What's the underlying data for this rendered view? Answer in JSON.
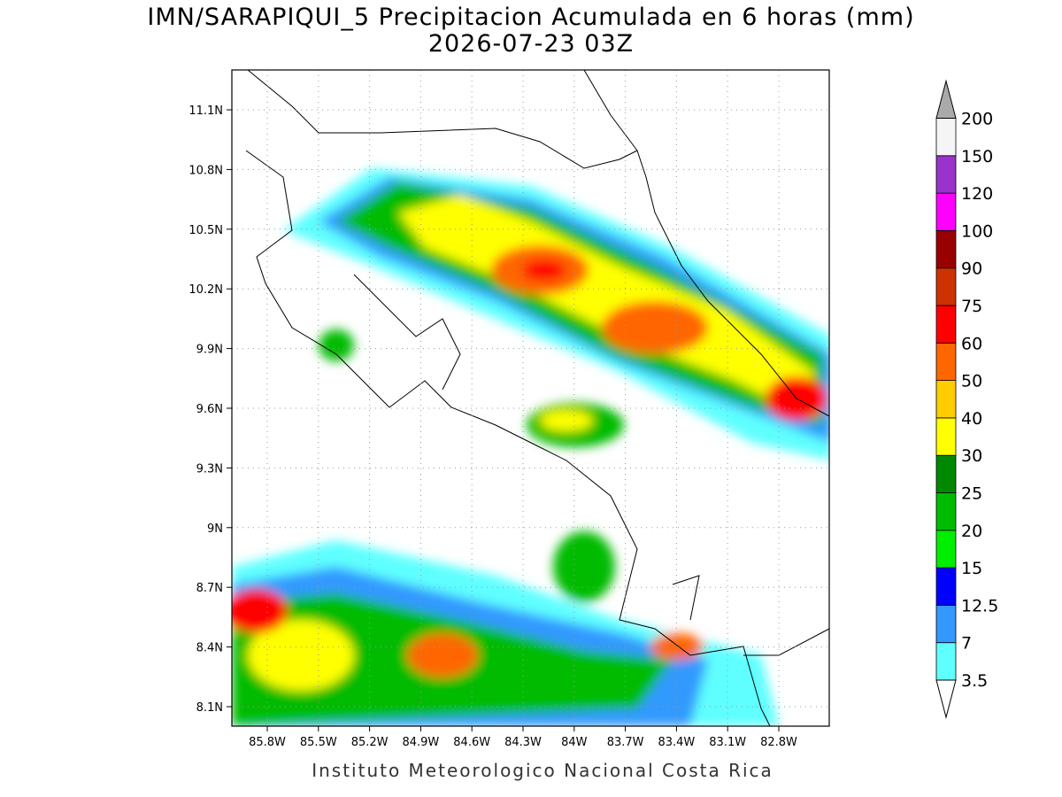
{
  "title": "IMN/SARAPIQUI_5 Precipitacion Acumulada en 6 horas (mm)",
  "subtitle": "2026-07-23 03Z",
  "lat_labels": [
    "11.1N",
    "10.8N",
    "10.5N",
    "10.2N",
    "9.9N",
    "9.6N",
    "9.3N",
    "9N",
    "8.7N",
    "8.4N",
    "8.1N"
  ],
  "lon_labels": [
    "85.8W",
    "85.5W",
    "85.2W",
    "84.9W",
    "84.6W",
    "84.3W",
    "84W",
    "83.7W",
    "83.4W",
    "83.1W",
    "82.8W"
  ],
  "colorbar": {
    "levels": [
      3.5,
      7,
      12.5,
      15,
      20,
      25,
      30,
      40,
      50,
      60,
      75,
      90,
      100,
      120,
      150,
      200
    ],
    "colors": [
      "#5fffff",
      "#3399ff",
      "#0000ff",
      "#00ee00",
      "#00bb00",
      "#008800",
      "#ffff00",
      "#ffcc00",
      "#ff6600",
      "#ff0000",
      "#cc3300",
      "#990000",
      "#ff00ff",
      "#9933cc",
      "#f5f5f5"
    ]
  },
  "footer": "Instituto Meteorologico Nacional Costa Rica"
}
